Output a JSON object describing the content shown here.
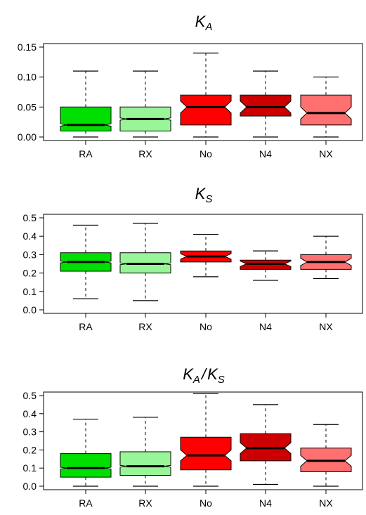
{
  "chart_data": [
    {
      "type": "box",
      "title": "K_A",
      "title_main": "K",
      "title_sub": "A",
      "ylim": [
        0,
        0.15
      ],
      "yticks": [
        0.0,
        0.05,
        0.1,
        0.15
      ],
      "ytick_labels": [
        "0.00",
        "0.05",
        "0.10",
        "0.15"
      ],
      "categories": [
        "RA",
        "RX",
        "No",
        "N4",
        "NX"
      ],
      "boxes": [
        {
          "label": "RA",
          "min": 0.0,
          "q1": 0.01,
          "median": 0.02,
          "q3": 0.05,
          "max": 0.11,
          "notch": [
            0.018,
            0.022
          ],
          "color": "#00E000"
        },
        {
          "label": "RX",
          "min": 0.0,
          "q1": 0.01,
          "median": 0.03,
          "q3": 0.05,
          "max": 0.11,
          "notch": [
            0.028,
            0.032
          ],
          "color": "#98F598"
        },
        {
          "label": "No",
          "min": 0.0,
          "q1": 0.02,
          "median": 0.05,
          "q3": 0.07,
          "max": 0.14,
          "notch": [
            0.04,
            0.06
          ],
          "color": "#FF0000"
        },
        {
          "label": "N4",
          "min": 0.0,
          "q1": 0.035,
          "median": 0.05,
          "q3": 0.07,
          "max": 0.11,
          "notch": [
            0.04,
            0.06
          ],
          "color": "#CC0000"
        },
        {
          "label": "NX",
          "min": 0.0,
          "q1": 0.02,
          "median": 0.04,
          "q3": 0.07,
          "max": 0.1,
          "notch": [
            0.03,
            0.05
          ],
          "color": "#FF7070"
        }
      ]
    },
    {
      "type": "box",
      "title": "K_S",
      "title_main": "K",
      "title_sub": "S",
      "ylim": [
        0,
        0.5
      ],
      "yticks": [
        0.0,
        0.1,
        0.2,
        0.3,
        0.4,
        0.5
      ],
      "ytick_labels": [
        "0.0",
        "0.1",
        "0.2",
        "0.3",
        "0.4",
        "0.5"
      ],
      "categories": [
        "RA",
        "RX",
        "No",
        "N4",
        "NX"
      ],
      "boxes": [
        {
          "label": "RA",
          "min": 0.06,
          "q1": 0.21,
          "median": 0.26,
          "q3": 0.31,
          "max": 0.46,
          "notch": [
            0.255,
            0.265
          ],
          "color": "#00E000"
        },
        {
          "label": "RX",
          "min": 0.05,
          "q1": 0.2,
          "median": 0.25,
          "q3": 0.31,
          "max": 0.47,
          "notch": [
            0.245,
            0.255
          ],
          "color": "#98F598"
        },
        {
          "label": "No",
          "min": 0.18,
          "q1": 0.26,
          "median": 0.29,
          "q3": 0.32,
          "max": 0.41,
          "notch": [
            0.275,
            0.305
          ],
          "color": "#FF0000"
        },
        {
          "label": "N4",
          "min": 0.16,
          "q1": 0.22,
          "median": 0.25,
          "q3": 0.27,
          "max": 0.32,
          "notch": [
            0.235,
            0.265
          ],
          "color": "#CC0000"
        },
        {
          "label": "NX",
          "min": 0.17,
          "q1": 0.22,
          "median": 0.26,
          "q3": 0.3,
          "max": 0.4,
          "notch": [
            0.24,
            0.28
          ],
          "color": "#FF7070"
        }
      ]
    },
    {
      "type": "box",
      "title": "K_A/K_S",
      "title_main": "K",
      "title_sub": "A",
      "title_sep": "/",
      "title_main2": "K",
      "title_sub2": "S",
      "ylim": [
        0,
        0.5
      ],
      "yticks": [
        0.0,
        0.1,
        0.2,
        0.3,
        0.4,
        0.5
      ],
      "ytick_labels": [
        "0.0",
        "0.1",
        "0.2",
        "0.3",
        "0.4",
        "0.5"
      ],
      "categories": [
        "RA",
        "RX",
        "No",
        "N4",
        "NX"
      ],
      "boxes": [
        {
          "label": "RA",
          "min": 0.0,
          "q1": 0.05,
          "median": 0.1,
          "q3": 0.18,
          "max": 0.37,
          "notch": [
            0.095,
            0.105
          ],
          "color": "#00E000"
        },
        {
          "label": "RX",
          "min": 0.0,
          "q1": 0.06,
          "median": 0.11,
          "q3": 0.19,
          "max": 0.38,
          "notch": [
            0.105,
            0.115
          ],
          "color": "#98F598"
        },
        {
          "label": "No",
          "min": 0.0,
          "q1": 0.09,
          "median": 0.17,
          "q3": 0.27,
          "max": 0.51,
          "notch": [
            0.14,
            0.2
          ],
          "color": "#FF0000"
        },
        {
          "label": "N4",
          "min": 0.01,
          "q1": 0.14,
          "median": 0.21,
          "q3": 0.29,
          "max": 0.45,
          "notch": [
            0.18,
            0.24
          ],
          "color": "#CC0000"
        },
        {
          "label": "NX",
          "min": 0.0,
          "q1": 0.08,
          "median": 0.14,
          "q3": 0.21,
          "max": 0.34,
          "notch": [
            0.11,
            0.17
          ],
          "color": "#FF7070"
        }
      ]
    }
  ]
}
